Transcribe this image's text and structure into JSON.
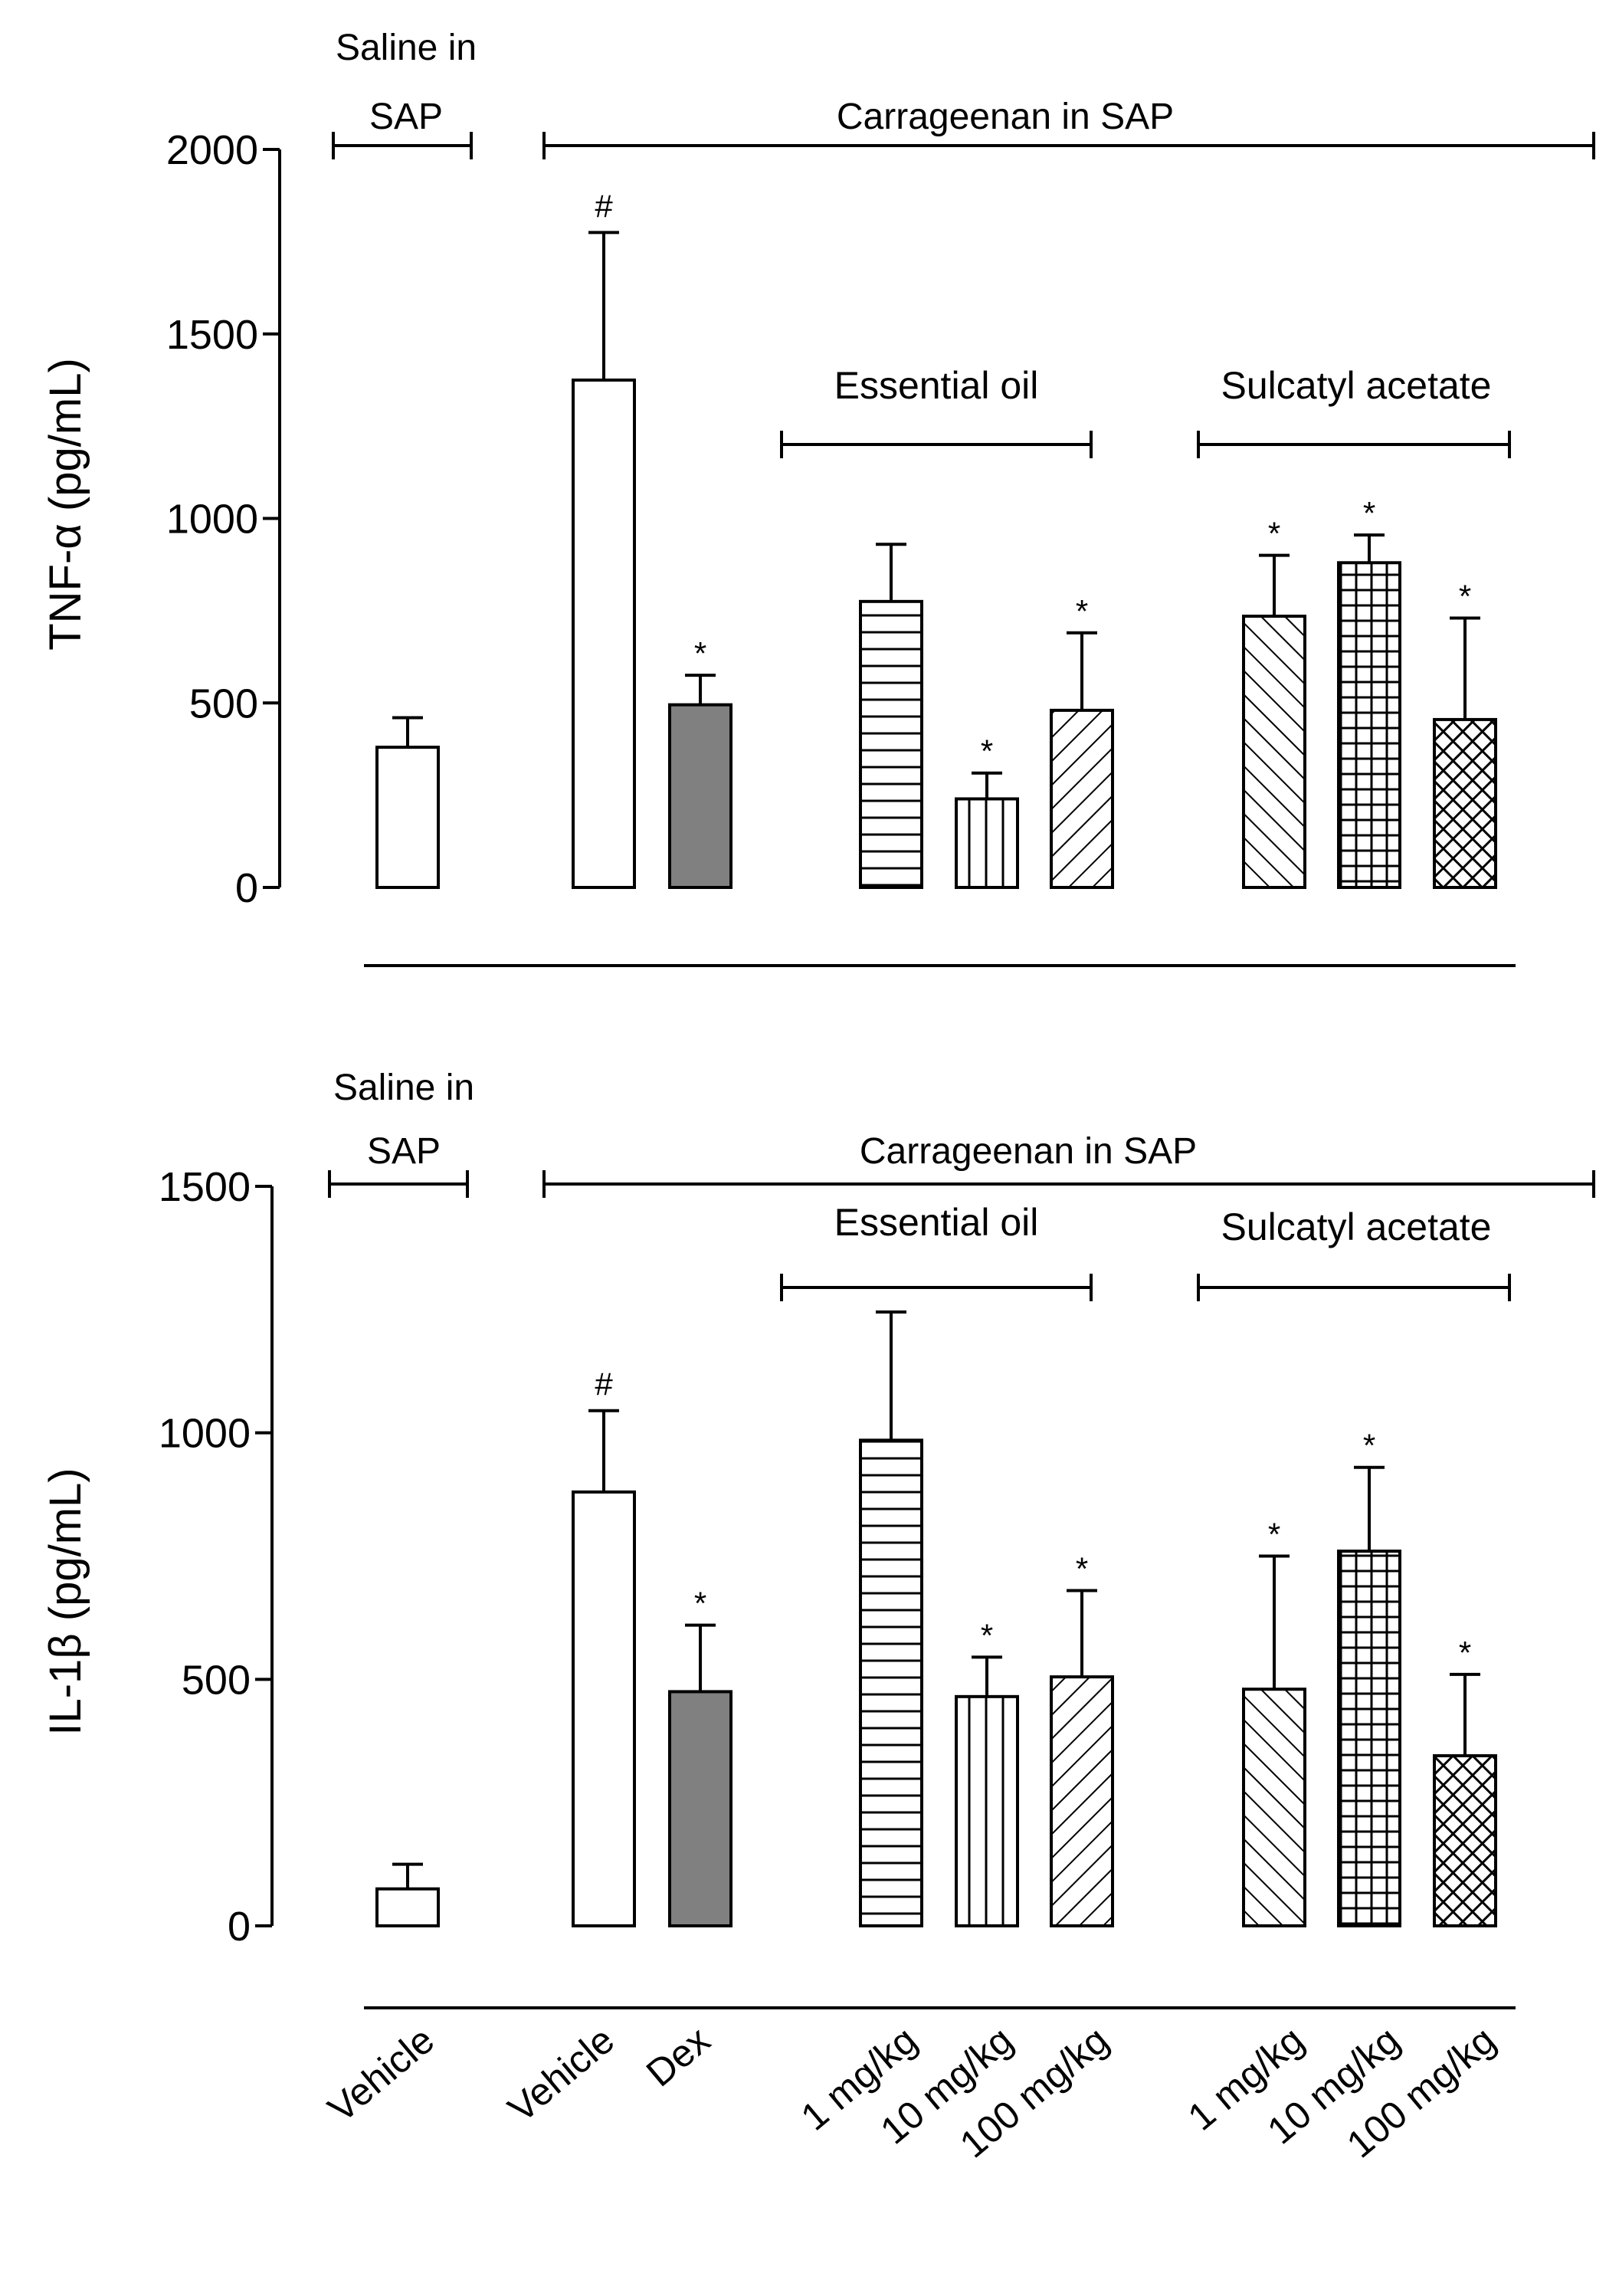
{
  "chart_data": [
    {
      "type": "bar",
      "title": "",
      "ylabel": "TNF-α (pg/mL)",
      "ylim": [
        0,
        2000
      ],
      "yticks": [
        0,
        500,
        1000,
        1500,
        2000
      ],
      "categories": [
        "Vehicle",
        "Vehicle",
        "Dex",
        "1 mg/kg",
        "10 mg/kg",
        "100 mg/kg",
        "1 mg/kg",
        "10 mg/kg",
        "100 mg/kg"
      ],
      "values": [
        380,
        1375,
        495,
        775,
        240,
        480,
        735,
        880,
        455
      ],
      "errors": [
        80,
        400,
        80,
        155,
        70,
        210,
        165,
        75,
        275
      ],
      "markers": [
        "",
        "#",
        "*",
        "",
        "*",
        "*",
        "*",
        "*",
        "*"
      ],
      "patterns": [
        "white",
        "white",
        "gray",
        "hlines",
        "vlines",
        "diag-right",
        "diag-left",
        "grid",
        "crosshatch"
      ],
      "group_labels": {
        "saline": "Saline in SAP",
        "carrageenan": "Carrageenan in SAP",
        "essential_oil": "Essential oil",
        "sulcatyl": "Sulcatyl acetate"
      }
    },
    {
      "type": "bar",
      "title": "",
      "ylabel": "IL-1β (pg/mL)",
      "ylim": [
        0,
        1500
      ],
      "yticks": [
        0,
        500,
        1000,
        1500
      ],
      "categories": [
        "Vehicle",
        "Vehicle",
        "Dex",
        "1 mg/kg",
        "10 mg/kg",
        "100 mg/kg",
        "1 mg/kg",
        "10 mg/kg",
        "100 mg/kg"
      ],
      "values": [
        75,
        880,
        475,
        985,
        465,
        505,
        480,
        760,
        345
      ],
      "errors": [
        50,
        165,
        135,
        260,
        80,
        175,
        270,
        170,
        165
      ],
      "markers": [
        "",
        "#",
        "*",
        "",
        "*",
        "*",
        "*",
        "*",
        "*"
      ],
      "patterns": [
        "white",
        "white",
        "gray",
        "hlines",
        "vlines",
        "diag-right",
        "diag-left",
        "grid",
        "crosshatch"
      ],
      "group_labels": {
        "saline": "Saline in SAP",
        "carrageenan": "Carrageenan in SAP",
        "essential_oil": "Essential oil",
        "sulcatyl": "Sulcatyl acetate"
      }
    }
  ],
  "labels": {
    "saline_line1": "Saline in",
    "saline_line2": "SAP",
    "carrageenan": "Carrageenan in SAP",
    "essential_oil": "Essential oil",
    "sulcatyl": "Sulcatyl acetate",
    "ylabel_top": "TNF-α (pg/mL)",
    "ylabel_bottom": "IL-1β (pg/mL)"
  },
  "x_categories": [
    "Vehicle",
    "Vehicle",
    "Dex",
    "1 mg/kg",
    "10 mg/kg",
    "100 mg/kg",
    "1 mg/kg",
    "10 mg/kg",
    "100 mg/kg"
  ]
}
